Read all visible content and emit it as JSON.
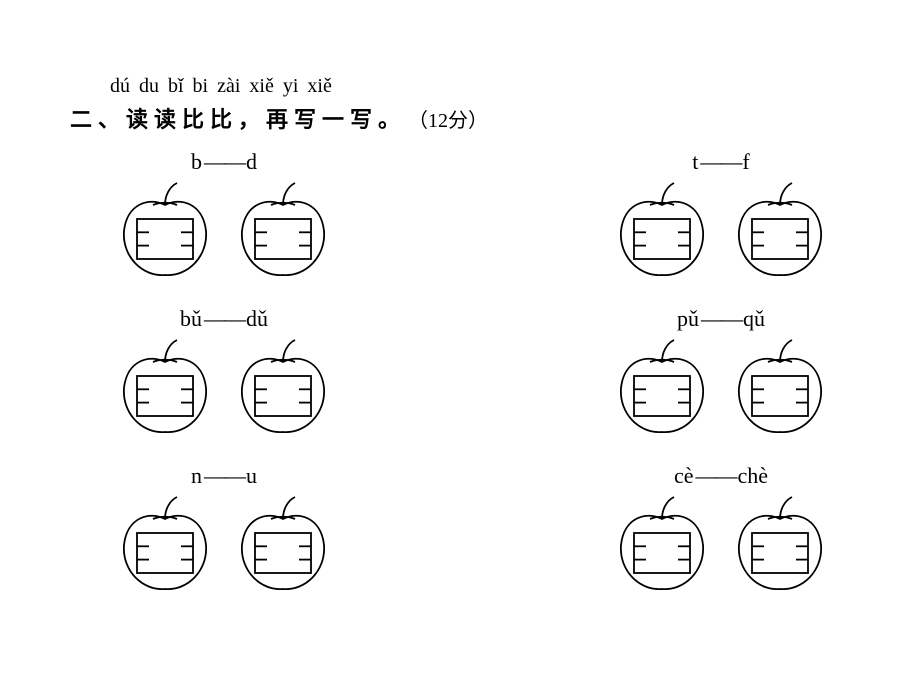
{
  "pinyin": "dú du bǐ bi   zài xiě yi xiě",
  "heading_number": "二、",
  "heading_main": "读读比比，再写一写。",
  "heading_score": "（12分）",
  "groups": [
    [
      {
        "left": "b",
        "right": "d"
      },
      {
        "left": "t",
        "right": "f"
      }
    ],
    [
      {
        "left": "bǔ",
        "right": "dǔ"
      },
      {
        "left": "pǔ",
        "right": "qǔ"
      }
    ],
    [
      {
        "left": "n",
        "right": "u"
      },
      {
        "left": "cè",
        "right": "chè"
      }
    ]
  ],
  "dash": "——",
  "colors": {
    "stroke": "#000000",
    "bg": "#ffffff"
  },
  "stroke_width": 1.8
}
